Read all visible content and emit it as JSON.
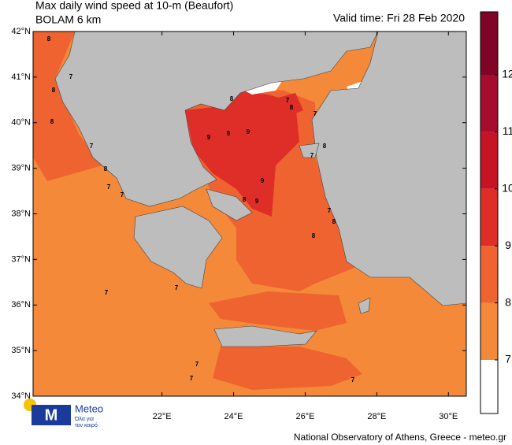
{
  "map": {
    "title": "Max daily wind speed at 10-m (Beaufort)",
    "subtitle": "BOLAM 6 km",
    "valid_time": "Valid time: Fri 28 Feb 2020",
    "footer": "National Observatory of Athens, Greece - meteo.gr",
    "logo": {
      "name": "Meteo",
      "tagline_1": "Όλα για",
      "tagline_2": "τον καιρό"
    },
    "lat_ticks": [
      {
        "value": 42,
        "label": "42°N"
      },
      {
        "value": 41,
        "label": "41°N"
      },
      {
        "value": 40,
        "label": "40°N"
      },
      {
        "value": 39,
        "label": "39°N"
      },
      {
        "value": 38,
        "label": "38°N"
      },
      {
        "value": 37,
        "label": "37°N"
      },
      {
        "value": 36,
        "label": "36°N"
      },
      {
        "value": 35,
        "label": "35°N"
      },
      {
        "value": 34,
        "label": "34°N"
      }
    ],
    "lon_ticks": [
      {
        "value": 22,
        "label": "22°E"
      },
      {
        "value": 24,
        "label": "24°E"
      },
      {
        "value": 26,
        "label": "26°E"
      },
      {
        "value": 28,
        "label": "28°E"
      },
      {
        "value": 30,
        "label": "30°E"
      }
    ],
    "latlim": [
      34,
      42
    ],
    "lonlim": [
      18.4,
      30.5
    ],
    "colorbar": {
      "ticks": [
        7,
        8,
        9,
        10,
        11,
        12
      ],
      "colors": [
        "#ffffff",
        "#f5893a",
        "#ee6330",
        "#de2e27",
        "#c71425",
        "#a50d2e",
        "#7f0427"
      ]
    },
    "contour_labels": [
      "8",
      "7",
      "8",
      "8",
      "7",
      "8",
      "7",
      "7",
      "9",
      "9",
      "9",
      "9",
      "9",
      "8",
      "8",
      "7",
      "8",
      "7",
      "8",
      "7",
      "7",
      "8",
      "8",
      "7",
      "7",
      "7",
      "7",
      "7"
    ]
  }
}
